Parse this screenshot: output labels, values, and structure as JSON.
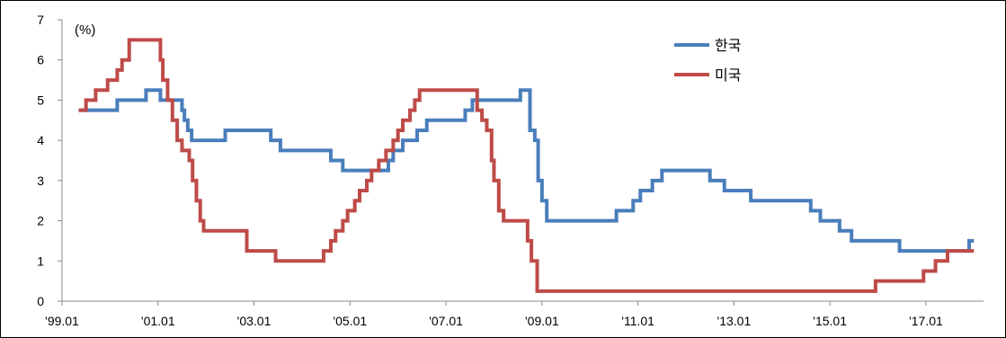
{
  "chart_data": {
    "type": "line",
    "title": "",
    "xlabel": "",
    "ylabel": "",
    "unit_label": "(%)",
    "ylim": [
      0,
      7
    ],
    "y_ticks": [
      0,
      1,
      2,
      3,
      4,
      5,
      6,
      7
    ],
    "xlim": [
      1999.0,
      2018.2
    ],
    "x_ticks": [
      {
        "value": 1999.0,
        "label": "'99.01"
      },
      {
        "value": 2001.0,
        "label": "'01.01"
      },
      {
        "value": 2003.0,
        "label": "'03.01"
      },
      {
        "value": 2005.0,
        "label": "'05.01"
      },
      {
        "value": 2007.0,
        "label": "'07.01"
      },
      {
        "value": 2009.0,
        "label": "'09.01"
      },
      {
        "value": 2011.0,
        "label": "'11.01"
      },
      {
        "value": 2013.0,
        "label": "'13.01"
      },
      {
        "value": 2015.0,
        "label": "'15.01"
      },
      {
        "value": 2017.0,
        "label": "'17.01"
      }
    ],
    "grid": false,
    "legend_position": "top-right",
    "series": [
      {
        "name": "한국",
        "color": "#4a7ebb",
        "step": true,
        "points": [
          [
            1999.35,
            4.75
          ],
          [
            2000.15,
            5.0
          ],
          [
            2000.75,
            5.25
          ],
          [
            2001.05,
            5.0
          ],
          [
            2001.5,
            4.75
          ],
          [
            2001.55,
            4.5
          ],
          [
            2001.62,
            4.25
          ],
          [
            2001.7,
            4.0
          ],
          [
            2002.4,
            4.25
          ],
          [
            2003.35,
            4.0
          ],
          [
            2003.55,
            3.75
          ],
          [
            2004.6,
            3.5
          ],
          [
            2004.85,
            3.25
          ],
          [
            2005.8,
            3.5
          ],
          [
            2005.9,
            3.75
          ],
          [
            2006.1,
            4.0
          ],
          [
            2006.4,
            4.25
          ],
          [
            2006.6,
            4.5
          ],
          [
            2007.4,
            4.75
          ],
          [
            2007.55,
            5.0
          ],
          [
            2008.55,
            5.25
          ],
          [
            2008.75,
            4.25
          ],
          [
            2008.85,
            4.0
          ],
          [
            2008.92,
            3.0
          ],
          [
            2009.0,
            2.5
          ],
          [
            2009.1,
            2.0
          ],
          [
            2010.55,
            2.25
          ],
          [
            2010.9,
            2.5
          ],
          [
            2011.05,
            2.75
          ],
          [
            2011.3,
            3.0
          ],
          [
            2011.5,
            3.25
          ],
          [
            2012.5,
            3.0
          ],
          [
            2012.8,
            2.75
          ],
          [
            2013.35,
            2.5
          ],
          [
            2014.6,
            2.25
          ],
          [
            2014.8,
            2.0
          ],
          [
            2015.2,
            1.75
          ],
          [
            2015.45,
            1.5
          ],
          [
            2016.45,
            1.25
          ],
          [
            2017.9,
            1.5
          ],
          [
            2018.0,
            1.5
          ]
        ]
      },
      {
        "name": "미국",
        "color": "#be4b48",
        "step": true,
        "points": [
          [
            1999.35,
            4.75
          ],
          [
            1999.5,
            5.0
          ],
          [
            1999.7,
            5.25
          ],
          [
            1999.95,
            5.5
          ],
          [
            2000.15,
            5.75
          ],
          [
            2000.25,
            6.0
          ],
          [
            2000.4,
            6.5
          ],
          [
            2001.05,
            6.0
          ],
          [
            2001.1,
            5.5
          ],
          [
            2001.2,
            5.0
          ],
          [
            2001.3,
            4.5
          ],
          [
            2001.4,
            4.0
          ],
          [
            2001.5,
            3.75
          ],
          [
            2001.65,
            3.5
          ],
          [
            2001.72,
            3.0
          ],
          [
            2001.8,
            2.5
          ],
          [
            2001.88,
            2.0
          ],
          [
            2001.95,
            1.75
          ],
          [
            2002.85,
            1.25
          ],
          [
            2003.45,
            1.0
          ],
          [
            2004.45,
            1.25
          ],
          [
            2004.6,
            1.5
          ],
          [
            2004.7,
            1.75
          ],
          [
            2004.85,
            2.0
          ],
          [
            2004.95,
            2.25
          ],
          [
            2005.1,
            2.5
          ],
          [
            2005.2,
            2.75
          ],
          [
            2005.35,
            3.0
          ],
          [
            2005.45,
            3.25
          ],
          [
            2005.6,
            3.5
          ],
          [
            2005.75,
            3.75
          ],
          [
            2005.9,
            4.0
          ],
          [
            2006.0,
            4.25
          ],
          [
            2006.1,
            4.5
          ],
          [
            2006.25,
            4.75
          ],
          [
            2006.35,
            5.0
          ],
          [
            2006.45,
            5.25
          ],
          [
            2007.65,
            4.75
          ],
          [
            2007.75,
            4.5
          ],
          [
            2007.85,
            4.25
          ],
          [
            2007.95,
            3.5
          ],
          [
            2008.0,
            3.0
          ],
          [
            2008.1,
            2.25
          ],
          [
            2008.2,
            2.0
          ],
          [
            2008.7,
            1.5
          ],
          [
            2008.78,
            1.0
          ],
          [
            2008.9,
            0.25
          ],
          [
            2015.95,
            0.5
          ],
          [
            2016.95,
            0.75
          ],
          [
            2017.2,
            1.0
          ],
          [
            2017.45,
            1.25
          ],
          [
            2018.0,
            1.25
          ]
        ]
      }
    ]
  }
}
